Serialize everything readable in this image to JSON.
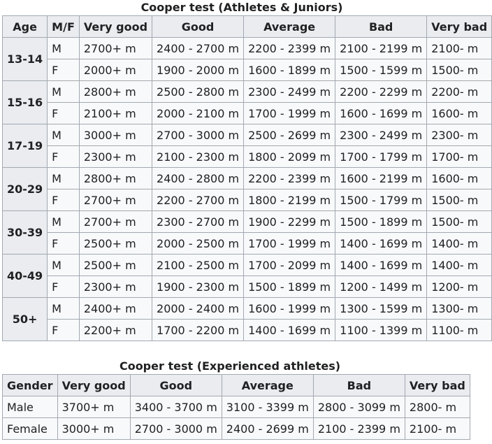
{
  "table1": {
    "caption": "Cooper test (Athletes & Juniors)",
    "headers": [
      "Age",
      "M/F",
      "Very good",
      "Good",
      "Average",
      "Bad",
      "Very bad"
    ],
    "groups": [
      {
        "age": "13-14",
        "rows": [
          {
            "sex": "M",
            "cells": [
              "2700+ m",
              "2400 - 2700 m",
              "2200 - 2399 m",
              "2100 - 2199 m",
              "2100- m"
            ]
          },
          {
            "sex": "F",
            "cells": [
              "2000+ m",
              "1900 - 2000 m",
              "1600 - 1899 m",
              "1500 - 1599 m",
              "1500- m"
            ]
          }
        ]
      },
      {
        "age": "15-16",
        "rows": [
          {
            "sex": "M",
            "cells": [
              "2800+ m",
              "2500 - 2800 m",
              "2300 - 2499 m",
              "2200 - 2299 m",
              "2200- m"
            ]
          },
          {
            "sex": "F",
            "cells": [
              "2100+ m",
              "2000 - 2100 m",
              "1700 - 1999 m",
              "1600 - 1699 m",
              "1600- m"
            ]
          }
        ]
      },
      {
        "age": "17-19",
        "rows": [
          {
            "sex": "M",
            "cells": [
              "3000+ m",
              "2700 - 3000 m",
              "2500 - 2699 m",
              "2300 - 2499 m",
              "2300- m"
            ]
          },
          {
            "sex": "F",
            "cells": [
              "2300+ m",
              "2100 - 2300 m",
              "1800 - 2099 m",
              "1700 - 1799 m",
              "1700- m"
            ]
          }
        ]
      },
      {
        "age": "20-29",
        "rows": [
          {
            "sex": "M",
            "cells": [
              "2800+ m",
              "2400 - 2800 m",
              "2200 - 2399 m",
              "1600 - 2199 m",
              "1600- m"
            ]
          },
          {
            "sex": "F",
            "cells": [
              "2700+ m",
              "2200 - 2700 m",
              "1800 - 2199 m",
              "1500 - 1799 m",
              "1500- m"
            ]
          }
        ]
      },
      {
        "age": "30-39",
        "rows": [
          {
            "sex": "M",
            "cells": [
              "2700+ m",
              "2300 - 2700 m",
              "1900 - 2299 m",
              "1500 - 1899 m",
              "1500- m"
            ]
          },
          {
            "sex": "F",
            "cells": [
              "2500+ m",
              "2000 - 2500 m",
              "1700 - 1999 m",
              "1400 - 1699 m",
              "1400- m"
            ]
          }
        ]
      },
      {
        "age": "40-49",
        "rows": [
          {
            "sex": "M",
            "cells": [
              "2500+ m",
              "2100 - 2500 m",
              "1700 - 2099 m",
              "1400 - 1699 m",
              "1400- m"
            ]
          },
          {
            "sex": "F",
            "cells": [
              "2300+ m",
              "1900 - 2300 m",
              "1500 - 1899 m",
              "1200 - 1499 m",
              "1200- m"
            ]
          }
        ]
      },
      {
        "age": "50+",
        "rows": [
          {
            "sex": "M",
            "cells": [
              "2400+ m",
              "2000 - 2400 m",
              "1600 - 1999 m",
              "1300 - 1599 m",
              "1300- m"
            ]
          },
          {
            "sex": "F",
            "cells": [
              "2200+ m",
              "1700 - 2200 m",
              "1400 - 1699 m",
              "1100 - 1399 m",
              "1100- m"
            ]
          }
        ]
      }
    ]
  },
  "table2": {
    "caption": "Cooper test (Experienced athletes)",
    "headers": [
      "Gender",
      "Very good",
      "Good",
      "Average",
      "Bad",
      "Very bad"
    ],
    "rows": [
      {
        "gender": "Male",
        "cells": [
          "3700+ m",
          "3400 - 3700 m",
          "3100 - 3399 m",
          "2800 - 3099 m",
          "2800- m"
        ]
      },
      {
        "gender": "Female",
        "cells": [
          "3000+ m",
          "2700 - 3000 m",
          "2400 - 2699 m",
          "2100 - 2399 m",
          "2100- m"
        ]
      }
    ]
  }
}
